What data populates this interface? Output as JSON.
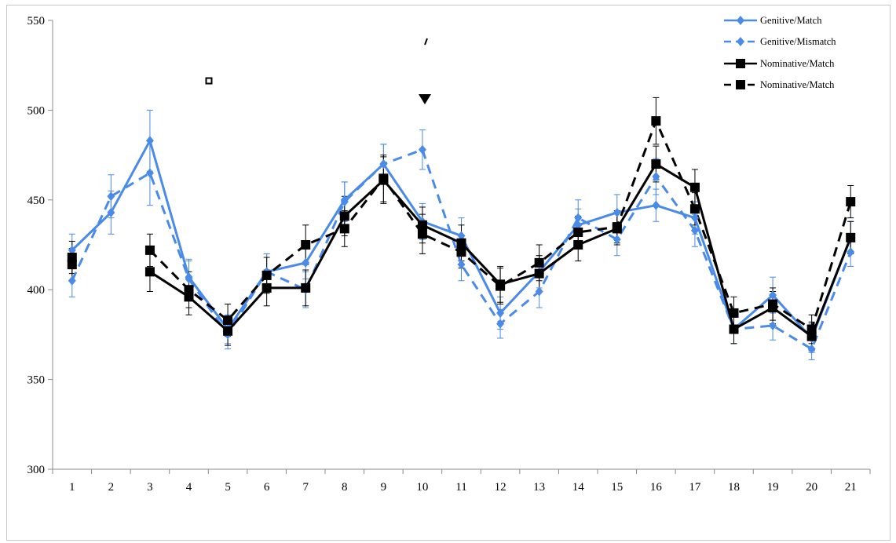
{
  "chart_data": {
    "type": "line",
    "x": [
      1,
      2,
      3,
      4,
      5,
      6,
      7,
      8,
      9,
      10,
      11,
      12,
      13,
      14,
      15,
      16,
      17,
      18,
      19,
      20,
      21
    ],
    "ylim": [
      300,
      550
    ],
    "yticks": [
      300,
      350,
      400,
      450,
      500,
      550
    ],
    "grid": false,
    "legend_position": "top-right",
    "series": [
      {
        "name": "Genitive/Match",
        "color": "#4a8ae8",
        "dash": "solid",
        "marker": "diamond",
        "values": [
          422,
          443,
          483,
          407,
          378,
          410,
          415,
          450,
          470,
          438,
          430,
          387,
          410,
          436,
          443,
          447,
          440,
          378,
          397,
          373,
          429
        ],
        "errors": [
          9,
          12,
          17,
          10,
          8,
          10,
          9,
          10,
          11,
          10,
          10,
          9,
          9,
          9,
          10,
          9,
          9,
          8,
          10,
          8,
          9
        ]
      },
      {
        "name": "Genitive/Mismatch",
        "color": "#4a8ae8",
        "dash": "dashed",
        "marker": "diamond",
        "values": [
          405,
          452,
          465,
          406,
          375,
          410,
          400,
          449,
          470,
          478,
          414,
          381,
          399,
          440,
          428,
          463,
          433,
          378,
          380,
          367,
          421
        ],
        "errors": [
          9,
          12,
          18,
          10,
          8,
          10,
          10,
          11,
          11,
          11,
          9,
          8,
          9,
          10,
          9,
          10,
          9,
          8,
          8,
          6,
          8
        ]
      },
      {
        "name": "Nominative/Match",
        "color": "#000000",
        "dash": "solid",
        "marker": "square",
        "values": [
          418,
          null,
          410,
          396,
          377,
          401,
          401,
          441,
          461,
          436,
          426,
          403,
          409,
          425,
          434,
          470,
          457,
          378,
          390,
          374,
          429
        ],
        "errors": [
          9,
          null,
          11,
          10,
          8,
          10,
          10,
          11,
          13,
          10,
          10,
          10,
          10,
          9,
          9,
          10,
          10,
          8,
          9,
          8,
          9
        ]
      },
      {
        "name": "Nominative/Match",
        "color": "#000000",
        "dash": "dashed",
        "marker": "square",
        "values": [
          414,
          null,
          422,
          400,
          383,
          408,
          425,
          434,
          462,
          431,
          421,
          402,
          415,
          432,
          435,
          494,
          445,
          387,
          392,
          378,
          449
        ],
        "errors": [
          9,
          null,
          9,
          10,
          9,
          10,
          11,
          10,
          13,
          11,
          9,
          10,
          10,
          9,
          9,
          13,
          9,
          9,
          9,
          8,
          9
        ]
      }
    ]
  },
  "legend": {
    "items": [
      {
        "label": "Genitive/Match"
      },
      {
        "label": "Genitive/Mismatch"
      },
      {
        "label": "Nominative/Match"
      },
      {
        "label": "Nominative/Match"
      }
    ]
  }
}
